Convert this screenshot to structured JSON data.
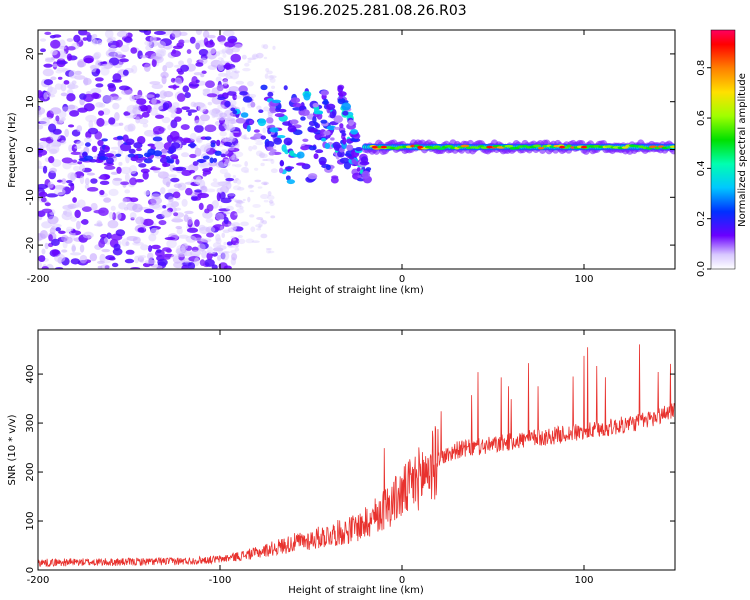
{
  "title": "S196.2025.281.08.26.R03",
  "chart_data": [
    {
      "type": "heatmap",
      "xlabel": "Height of straight line (km)",
      "ylabel": "Frequency (Hz)",
      "xlim": [
        -200,
        150
      ],
      "ylim": [
        -25,
        25
      ],
      "xticks": [
        "-200",
        "-100",
        "0",
        "100"
      ],
      "xtick_values": [
        -200,
        -100,
        0,
        100
      ],
      "yticks": [
        "-20",
        "-10",
        "0",
        "10",
        "20"
      ],
      "ytick_values": [
        -20,
        -10,
        0,
        10,
        20
      ],
      "colorbar": {
        "label": "Normalized spectral amplitude",
        "range": [
          0,
          0.95
        ],
        "ticks": [
          "0.0",
          "0.2",
          "0.4",
          "0.6",
          "0.8"
        ],
        "tick_values": [
          0.0,
          0.2,
          0.4,
          0.6,
          0.8
        ]
      },
      "features": {
        "noise_region_km": [
          -200,
          -100
        ],
        "diagonal_streaks_km": [
          -100,
          -20
        ],
        "signal_line_freq_hz": 0.5,
        "signal_line_start_km": -20
      }
    },
    {
      "type": "line",
      "xlabel": "Height of straight line (km)",
      "ylabel": "SNR (10 * v/v)",
      "xlim": [
        -200,
        150
      ],
      "ylim": [
        0,
        490
      ],
      "xticks": [
        "-200",
        "-100",
        "0",
        "100"
      ],
      "xtick_values": [
        -200,
        -100,
        0,
        100
      ],
      "yticks": [
        "0",
        "100",
        "200",
        "300",
        "400"
      ],
      "ytick_values": [
        0,
        100,
        200,
        300,
        400
      ],
      "series": [
        {
          "name": "SNR",
          "color": "#e8322e",
          "x": [
            -200,
            -180,
            -160,
            -140,
            -120,
            -100,
            -90,
            -80,
            -70,
            -60,
            -50,
            -40,
            -30,
            -20,
            -15,
            -10,
            -5,
            0,
            10,
            20,
            30,
            40,
            50,
            60,
            70,
            80,
            90,
            100,
            110,
            120,
            130,
            140,
            150
          ],
          "y": [
            15,
            16,
            16,
            17,
            18,
            22,
            28,
            35,
            45,
            55,
            62,
            72,
            80,
            95,
            110,
            125,
            140,
            155,
            190,
            225,
            245,
            250,
            255,
            262,
            268,
            272,
            278,
            282,
            288,
            295,
            302,
            312,
            330
          ]
        }
      ]
    }
  ]
}
